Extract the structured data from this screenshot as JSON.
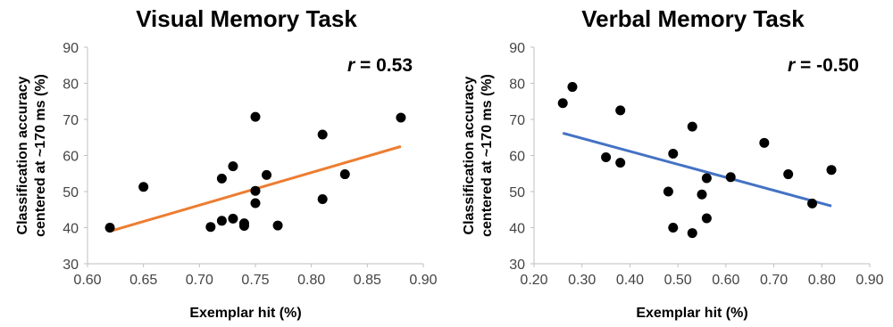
{
  "chart_data": [
    {
      "type": "scatter",
      "title": "Visual Memory Task",
      "xlabel": "Exemplar hit (%)",
      "ylabel_lines": [
        "Classification accuracy",
        "centered at ~170 ms (%)"
      ],
      "xlim": [
        0.6,
        0.9
      ],
      "ylim": [
        30,
        90
      ],
      "xticks": [
        "0.60",
        "0.65",
        "0.70",
        "0.75",
        "0.80",
        "0.85",
        "0.90"
      ],
      "yticks": [
        "30",
        "40",
        "50",
        "60",
        "70",
        "80",
        "90"
      ],
      "annotation": {
        "var": "r",
        "text": " = 0.53"
      },
      "grid": false,
      "points": [
        {
          "x": 0.62,
          "y": 40
        },
        {
          "x": 0.65,
          "y": 51.3
        },
        {
          "x": 0.71,
          "y": 40.2
        },
        {
          "x": 0.72,
          "y": 53.6
        },
        {
          "x": 0.72,
          "y": 41.9
        },
        {
          "x": 0.73,
          "y": 57
        },
        {
          "x": 0.73,
          "y": 42.5
        },
        {
          "x": 0.74,
          "y": 41.2
        },
        {
          "x": 0.74,
          "y": 40.5
        },
        {
          "x": 0.75,
          "y": 70.7
        },
        {
          "x": 0.75,
          "y": 50.2
        },
        {
          "x": 0.75,
          "y": 46.8
        },
        {
          "x": 0.76,
          "y": 54.6
        },
        {
          "x": 0.77,
          "y": 40.6
        },
        {
          "x": 0.81,
          "y": 65.8
        },
        {
          "x": 0.81,
          "y": 47.9
        },
        {
          "x": 0.83,
          "y": 54.8
        },
        {
          "x": 0.88,
          "y": 70.5
        }
      ],
      "trendline": {
        "x": [
          0.62,
          0.88
        ],
        "y": [
          39,
          62.5
        ],
        "color": "#ED7D31"
      },
      "marker_color": "#000000"
    },
    {
      "type": "scatter",
      "title": "Verbal Memory Task",
      "xlabel": "Exemplar hit (%)",
      "ylabel_lines": [
        "Classification accuracy",
        "centered at ~170 ms (%)"
      ],
      "xlim": [
        0.2,
        0.9
      ],
      "ylim": [
        30,
        90
      ],
      "xticks": [
        "0.20",
        "0.30",
        "0.40",
        "0.50",
        "0.60",
        "0.70",
        "0.80",
        "0.90"
      ],
      "yticks": [
        "30",
        "40",
        "50",
        "60",
        "70",
        "80",
        "90"
      ],
      "annotation": {
        "var": "r",
        "text": " = -0.50"
      },
      "grid": false,
      "points": [
        {
          "x": 0.26,
          "y": 74.5
        },
        {
          "x": 0.28,
          "y": 79
        },
        {
          "x": 0.35,
          "y": 59.5
        },
        {
          "x": 0.38,
          "y": 72.5
        },
        {
          "x": 0.38,
          "y": 58
        },
        {
          "x": 0.48,
          "y": 50
        },
        {
          "x": 0.49,
          "y": 60.5
        },
        {
          "x": 0.49,
          "y": 40
        },
        {
          "x": 0.53,
          "y": 68
        },
        {
          "x": 0.53,
          "y": 38.5
        },
        {
          "x": 0.55,
          "y": 49.2
        },
        {
          "x": 0.56,
          "y": 53.7
        },
        {
          "x": 0.56,
          "y": 42.6
        },
        {
          "x": 0.61,
          "y": 54
        },
        {
          "x": 0.68,
          "y": 63.5
        },
        {
          "x": 0.73,
          "y": 54.8
        },
        {
          "x": 0.78,
          "y": 46.7
        },
        {
          "x": 0.82,
          "y": 56
        }
      ],
      "trendline": {
        "x": [
          0.26,
          0.82
        ],
        "y": [
          66.2,
          46
        ],
        "color": "#4472C4"
      },
      "marker_color": "#000000"
    }
  ]
}
